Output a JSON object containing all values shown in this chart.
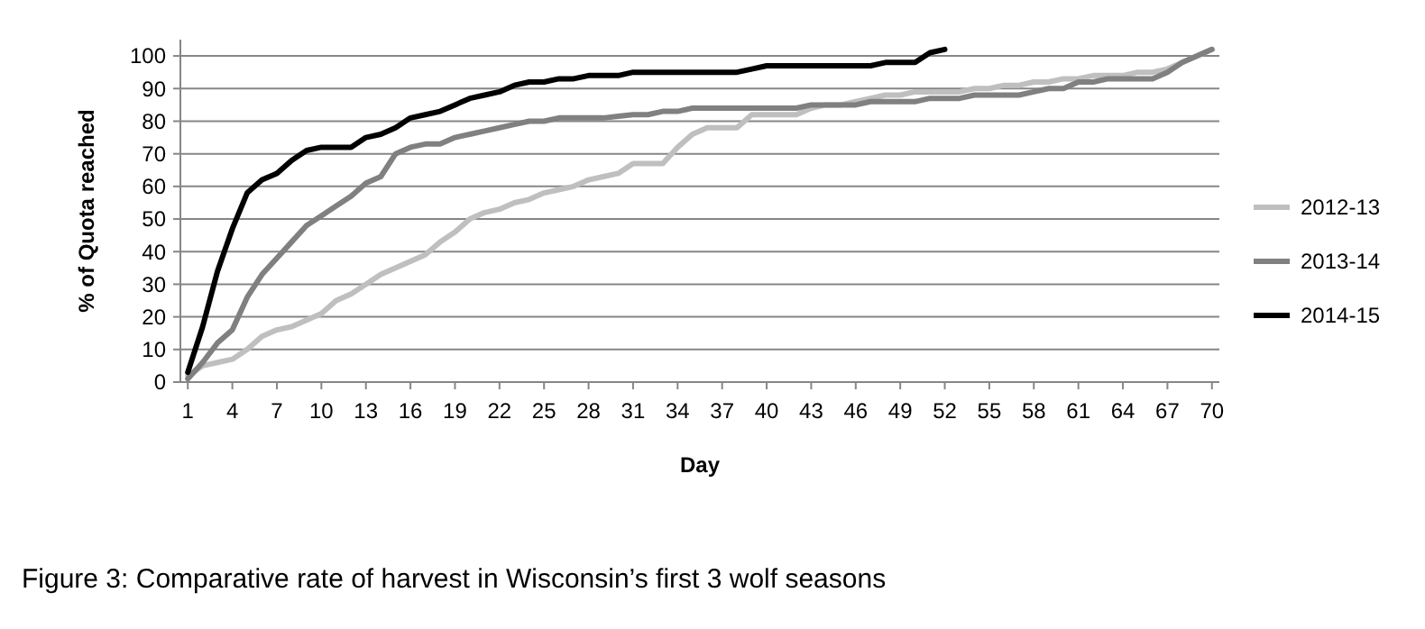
{
  "chart_data": {
    "type": "line",
    "xlabel": "Day",
    "ylabel": "% of Quota reached",
    "annotations": [
      "Figure 3: Comparative rate of harvest in Wisconsin’s first 3 wolf seasons"
    ],
    "xlim": [
      0.5,
      70.5
    ],
    "xticks": [
      1,
      4,
      7,
      10,
      13,
      16,
      19,
      22,
      25,
      28,
      31,
      34,
      37,
      40,
      43,
      46,
      49,
      52,
      55,
      58,
      61,
      64,
      67,
      70
    ],
    "ylim": [
      0,
      105
    ],
    "yticks": [
      0,
      10,
      20,
      30,
      40,
      50,
      60,
      70,
      80,
      90,
      100
    ],
    "grid": "y",
    "legend": "right",
    "line_style": "solid",
    "x": [
      1,
      2,
      3,
      4,
      5,
      6,
      7,
      8,
      9,
      10,
      11,
      12,
      13,
      14,
      15,
      16,
      17,
      18,
      19,
      20,
      21,
      22,
      23,
      24,
      25,
      26,
      27,
      28,
      29,
      30,
      31,
      32,
      33,
      34,
      35,
      36,
      37,
      38,
      39,
      40,
      41,
      42,
      43,
      44,
      45,
      46,
      47,
      48,
      49,
      50,
      51,
      52,
      53,
      54,
      55,
      56,
      57,
      58,
      59,
      60,
      61,
      62,
      63,
      64,
      65,
      66,
      67,
      68,
      69,
      70
    ],
    "series": [
      {
        "name": "2012-13",
        "color": "#bfbfbf",
        "values": [
          2,
          5,
          6,
          7,
          10,
          14,
          16,
          17,
          19,
          21,
          25,
          27,
          30,
          33,
          35,
          37,
          39,
          43,
          46,
          50,
          52,
          53,
          55,
          56,
          58,
          59,
          60,
          62,
          63,
          64,
          67,
          67,
          67,
          72,
          76,
          78,
          78,
          78,
          82,
          82,
          82,
          82,
          84,
          85,
          85,
          86,
          87,
          88,
          88,
          89,
          89,
          89,
          89,
          90,
          90,
          91,
          91,
          92,
          92,
          93,
          93,
          94,
          94,
          94,
          95,
          95,
          96,
          98,
          100,
          102
        ]
      },
      {
        "name": "2013-14",
        "color": "#808080",
        "values": [
          1,
          6,
          12,
          16,
          26,
          33,
          38,
          43,
          48,
          51,
          54,
          57,
          61,
          63,
          70,
          72,
          73,
          73,
          75,
          76,
          77,
          78,
          79,
          80,
          80,
          81,
          81,
          81,
          81,
          81.5,
          82,
          82,
          83,
          83,
          84,
          84,
          84,
          84,
          84,
          84,
          84,
          84,
          85,
          85,
          85,
          85,
          86,
          86,
          86,
          86,
          87,
          87,
          87,
          88,
          88,
          88,
          88,
          89,
          90,
          90,
          92,
          92,
          93,
          93,
          93,
          93,
          95,
          98,
          100,
          102
        ]
      },
      {
        "name": "2014-15",
        "color": "#000000",
        "values": [
          3,
          17,
          34,
          47,
          58,
          62,
          64,
          68,
          71,
          72,
          72,
          72,
          75,
          76,
          78,
          81,
          82,
          83,
          85,
          87,
          88,
          89,
          91,
          92,
          92,
          93,
          93,
          94,
          94,
          94,
          95,
          95,
          95,
          95,
          95,
          95,
          95,
          95,
          96,
          97,
          97,
          97,
          97,
          97,
          97,
          97,
          97,
          98,
          98,
          98,
          101,
          102,
          null,
          null,
          null,
          null,
          null,
          null,
          null,
          null,
          null,
          null,
          null,
          null,
          null,
          null,
          null,
          null,
          null,
          null
        ]
      }
    ]
  }
}
